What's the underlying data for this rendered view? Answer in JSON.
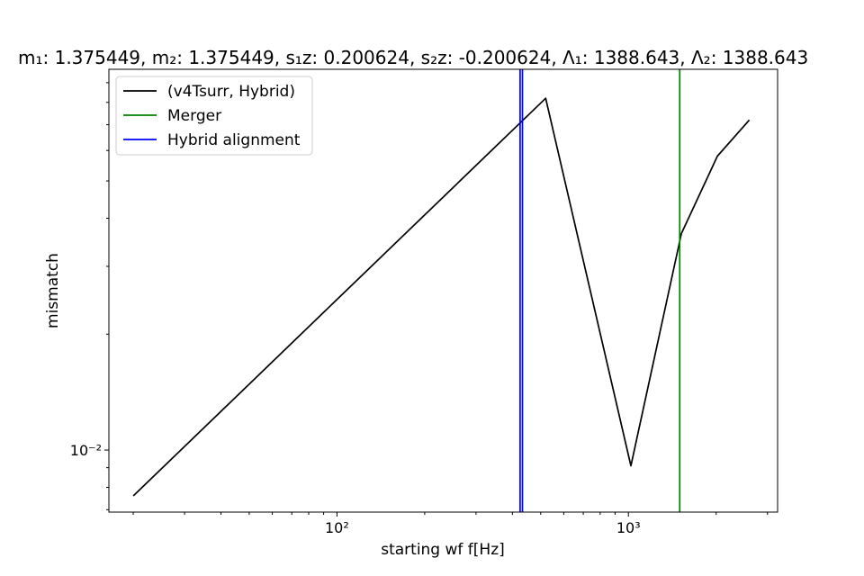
{
  "chart_data": {
    "type": "line",
    "title": "m₁: 1.375449, m₂: 1.375449, s₁z: 0.200624, s₂z: -0.200624, Λ₁: 1388.643, Λ₂: 1388.643",
    "xlabel": "starting wf f[Hz]",
    "ylabel": "mismatch",
    "xscale": "log",
    "yscale": "log",
    "xlim": [
      16.5,
      3250
    ],
    "ylim": [
      0.0069,
      0.0975
    ],
    "xticks": [
      {
        "value": 100,
        "label": "10²"
      },
      {
        "value": 1000,
        "label": "10³"
      }
    ],
    "yticks": [
      {
        "value": 0.01,
        "label": "10⁻²"
      }
    ],
    "grid": false,
    "legend_position": "upper-left",
    "series": [
      {
        "name": "(v4Tsurr, Hybrid)",
        "color": "#000000",
        "x": [
          20,
          520,
          1020,
          1520,
          2020,
          2600
        ],
        "y": [
          0.0076,
          0.082,
          0.0091,
          0.0365,
          0.058,
          0.072
        ]
      }
    ],
    "vlines": [
      {
        "name": "Merger",
        "color": "#008000",
        "x": 1500
      },
      {
        "name": "Hybrid alignment",
        "color": "#0000ff",
        "x": 425
      },
      {
        "name": "",
        "color": "#0000ff",
        "x": 433
      }
    ],
    "legend": [
      {
        "label": "(v4Tsurr, Hybrid)",
        "color": "#000000"
      },
      {
        "label": "Merger",
        "color": "#008000"
      },
      {
        "label": "Hybrid alignment",
        "color": "#0000ff"
      }
    ]
  }
}
